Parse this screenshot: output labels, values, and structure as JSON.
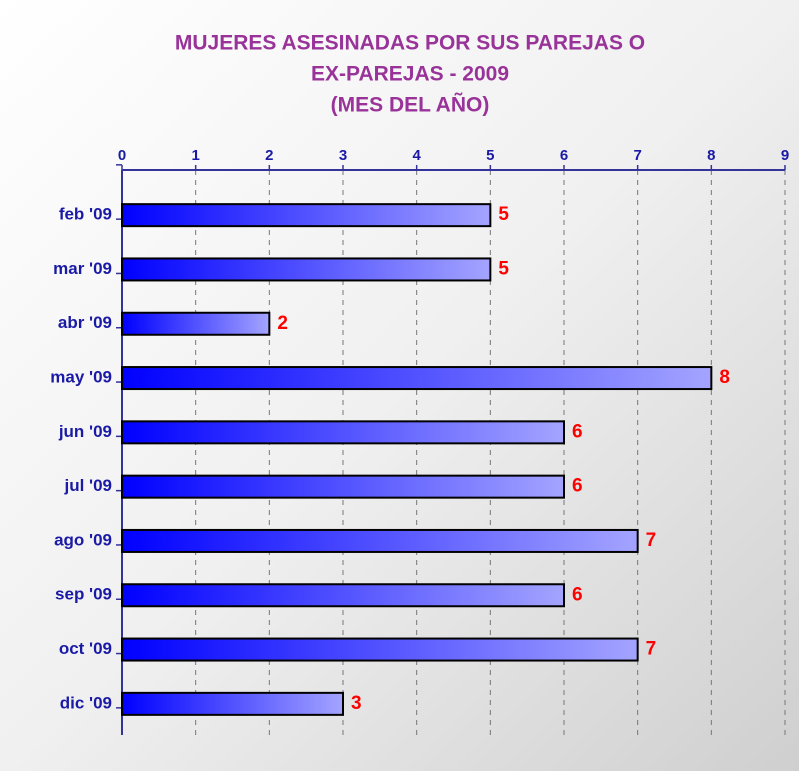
{
  "chart_data": {
    "type": "bar",
    "orientation": "horizontal",
    "title": [
      "MUJERES ASESINADAS POR SUS PAREJAS O",
      "EX-PAREJAS - 2009",
      "(MES DEL AÑO)"
    ],
    "categories": [
      "feb '09",
      "mar '09",
      "abr '09",
      "may '09",
      "jun '09",
      "jul '09",
      "ago '09",
      "sep '09",
      "oct '09",
      "dic '09"
    ],
    "values": [
      5,
      5,
      2,
      8,
      6,
      6,
      7,
      6,
      7,
      3
    ],
    "color": "#0000ff",
    "xlim": [
      0,
      9
    ],
    "xticks": [
      0,
      1,
      2,
      3,
      4,
      5,
      6,
      7,
      8,
      9
    ],
    "grid": true
  }
}
